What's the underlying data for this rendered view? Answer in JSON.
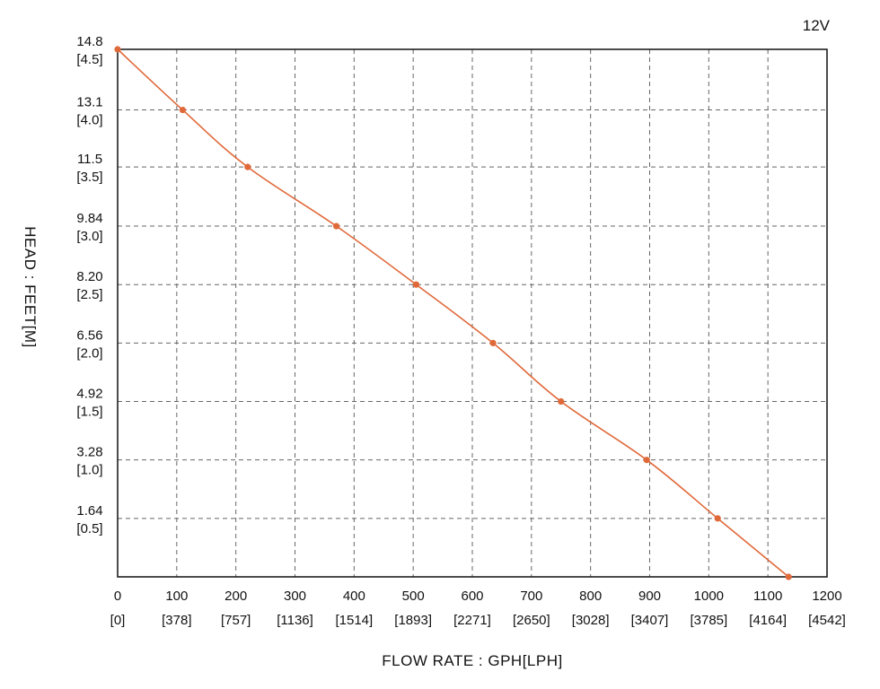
{
  "chart_data": {
    "type": "line",
    "title": "",
    "series_label": "12V",
    "xlabel": "FLOW RATE : GPH[LPH]",
    "ylabel": "HEAD : FEET[M]",
    "xlim": [
      0,
      1200
    ],
    "ylim": [
      0,
      14.8
    ],
    "x_ticks": [
      {
        "value": 0,
        "main": "0",
        "sub": "[0]"
      },
      {
        "value": 100,
        "main": "100",
        "sub": "[378]"
      },
      {
        "value": 200,
        "main": "200",
        "sub": "[757]"
      },
      {
        "value": 300,
        "main": "300",
        "sub": "[1136]"
      },
      {
        "value": 400,
        "main": "400",
        "sub": "[1514]"
      },
      {
        "value": 500,
        "main": "500",
        "sub": "[1893]"
      },
      {
        "value": 600,
        "main": "600",
        "sub": "[2271]"
      },
      {
        "value": 700,
        "main": "700",
        "sub": "[2650]"
      },
      {
        "value": 800,
        "main": "800",
        "sub": "[3028]"
      },
      {
        "value": 900,
        "main": "900",
        "sub": "[3407]"
      },
      {
        "value": 1000,
        "main": "1000",
        "sub": "[3785]"
      },
      {
        "value": 1100,
        "main": "1100",
        "sub": "[4164]"
      },
      {
        "value": 1200,
        "main": "1200",
        "sub": "[4542]"
      }
    ],
    "y_ticks": [
      {
        "value": 14.8,
        "main": "14.8",
        "sub": "[4.5]"
      },
      {
        "value": 13.1,
        "main": "13.1",
        "sub": "[4.0]"
      },
      {
        "value": 11.5,
        "main": "11.5",
        "sub": "[3.5]"
      },
      {
        "value": 9.84,
        "main": "9.84",
        "sub": "[3.0]"
      },
      {
        "value": 8.2,
        "main": "8.20",
        "sub": "[2.5]"
      },
      {
        "value": 6.56,
        "main": "6.56",
        "sub": "[2.0]"
      },
      {
        "value": 4.92,
        "main": "4.92",
        "sub": "[1.5]"
      },
      {
        "value": 3.28,
        "main": "3.28",
        "sub": "[1.0]"
      },
      {
        "value": 1.64,
        "main": "1.64",
        "sub": "[0.5]"
      }
    ],
    "grid": true,
    "color": "#e0693a",
    "series": [
      {
        "x": [
          0,
          110,
          220,
          370,
          505,
          635,
          750,
          895,
          1015,
          1135
        ],
        "y": [
          14.8,
          13.1,
          11.5,
          9.84,
          8.2,
          6.56,
          4.92,
          3.28,
          1.64,
          0
        ]
      }
    ]
  }
}
